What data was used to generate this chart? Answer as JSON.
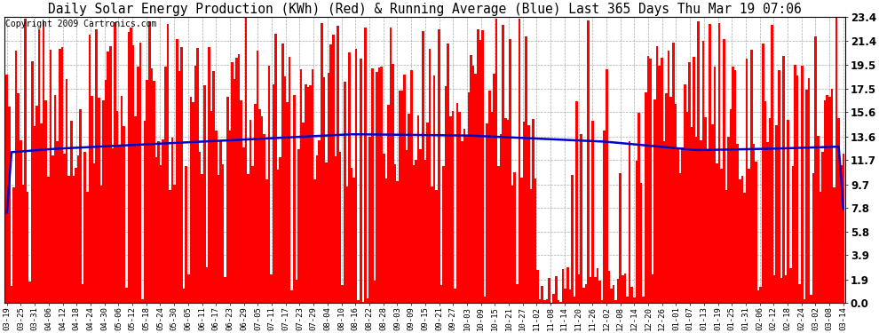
{
  "title": "Daily Solar Energy Production (KWh) (Red) & Running Average (Blue) Last 365 Days Thu Mar 19 07:06",
  "copyright": "Copyright 2009 Cartronics.com",
  "yticks": [
    0.0,
    1.9,
    3.9,
    5.8,
    7.8,
    9.7,
    11.7,
    13.6,
    15.6,
    17.5,
    19.5,
    21.4,
    23.4
  ],
  "ymax": 23.4,
  "bar_color": "#FF0000",
  "avg_color": "#0000CD",
  "bg_color": "#FFFFFF",
  "grid_color": "#AAAAAA",
  "title_fontsize": 10.5,
  "copyright_fontsize": 7,
  "x_tick_labels": [
    "03-19",
    "03-25",
    "03-31",
    "04-06",
    "04-12",
    "04-18",
    "04-24",
    "04-30",
    "05-06",
    "05-12",
    "05-18",
    "05-24",
    "05-30",
    "06-05",
    "06-11",
    "06-17",
    "06-23",
    "06-29",
    "07-05",
    "07-11",
    "07-17",
    "07-23",
    "07-29",
    "08-04",
    "08-10",
    "08-16",
    "08-22",
    "08-28",
    "09-03",
    "09-09",
    "09-15",
    "09-21",
    "09-27",
    "10-03",
    "10-09",
    "10-15",
    "10-21",
    "10-27",
    "11-02",
    "11-08",
    "11-14",
    "11-20",
    "11-26",
    "12-02",
    "12-08",
    "12-14",
    "12-20",
    "12-26",
    "01-01",
    "01-07",
    "01-13",
    "01-19",
    "01-25",
    "01-31",
    "02-06",
    "02-12",
    "02-18",
    "02-24",
    "03-02",
    "03-08",
    "03-14"
  ],
  "num_days": 365
}
